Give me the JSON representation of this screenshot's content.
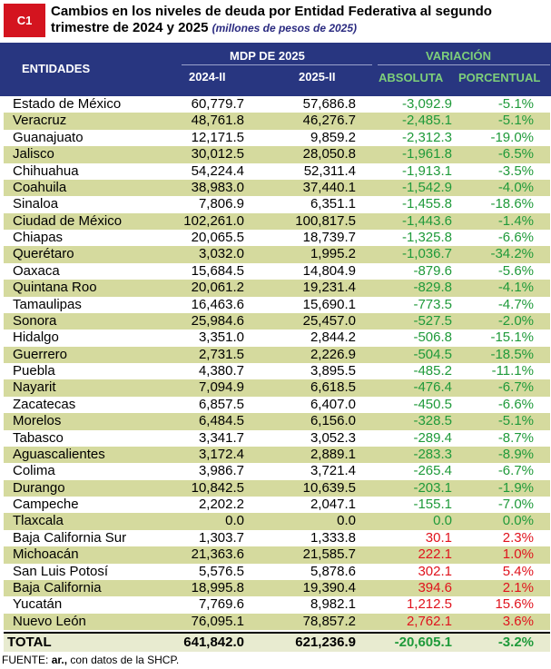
{
  "header": {
    "badge": "C1",
    "title": "Cambios en los niveles de deuda por Entidad Federativa al segundo trimestre de 2024 y 2025",
    "subtitle": "(millones de pesos de 2025)"
  },
  "columns": {
    "entidades": "ENTIDADES",
    "mdp_group": "MDP DE 2025",
    "y2024": "2024-II",
    "y2025": "2025-II",
    "variacion": "VARIACIÓN",
    "absoluta": "ABSOLUTA",
    "porcentual": "PORCENTUAL"
  },
  "rows": [
    {
      "entidad": "Estado de México",
      "v2024": "60,779.7",
      "v2025": "57,686.8",
      "abs": "-3,092.9",
      "pct": "-5.1%"
    },
    {
      "entidad": "Veracruz",
      "v2024": "48,761.8",
      "v2025": "46,276.7",
      "abs": "-2,485.1",
      "pct": "-5.1%"
    },
    {
      "entidad": "Guanajuato",
      "v2024": "12,171.5",
      "v2025": "9,859.2",
      "abs": "-2,312.3",
      "pct": "-19.0%"
    },
    {
      "entidad": "Jalisco",
      "v2024": "30,012.5",
      "v2025": "28,050.8",
      "abs": "-1,961.8",
      "pct": "-6.5%"
    },
    {
      "entidad": "Chihuahua",
      "v2024": "54,224.4",
      "v2025": "52,311.4",
      "abs": "-1,913.1",
      "pct": "-3.5%"
    },
    {
      "entidad": "Coahuila",
      "v2024": "38,983.0",
      "v2025": "37,440.1",
      "abs": "-1,542.9",
      "pct": "-4.0%"
    },
    {
      "entidad": "Sinaloa",
      "v2024": "7,806.9",
      "v2025": "6,351.1",
      "abs": "-1,455.8",
      "pct": "-18.6%"
    },
    {
      "entidad": "Ciudad de México",
      "v2024": "102,261.0",
      "v2025": "100,817.5",
      "abs": "-1,443.6",
      "pct": "-1.4%"
    },
    {
      "entidad": "Chiapas",
      "v2024": "20,065.5",
      "v2025": "18,739.7",
      "abs": "-1,325.8",
      "pct": "-6.6%"
    },
    {
      "entidad": "Querétaro",
      "v2024": "3,032.0",
      "v2025": "1,995.2",
      "abs": "-1,036.7",
      "pct": "-34.2%"
    },
    {
      "entidad": "Oaxaca",
      "v2024": "15,684.5",
      "v2025": "14,804.9",
      "abs": "-879.6",
      "pct": "-5.6%"
    },
    {
      "entidad": "Quintana Roo",
      "v2024": "20,061.2",
      "v2025": "19,231.4",
      "abs": "-829.8",
      "pct": "-4.1%"
    },
    {
      "entidad": "Tamaulipas",
      "v2024": "16,463.6",
      "v2025": "15,690.1",
      "abs": "-773.5",
      "pct": "-4.7%"
    },
    {
      "entidad": "Sonora",
      "v2024": "25,984.6",
      "v2025": "25,457.0",
      "abs": "-527.5",
      "pct": "-2.0%"
    },
    {
      "entidad": "Hidalgo",
      "v2024": "3,351.0",
      "v2025": "2,844.2",
      "abs": "-506.8",
      "pct": "-15.1%"
    },
    {
      "entidad": "Guerrero",
      "v2024": "2,731.5",
      "v2025": "2,226.9",
      "abs": "-504.5",
      "pct": "-18.5%"
    },
    {
      "entidad": "Puebla",
      "v2024": "4,380.7",
      "v2025": "3,895.5",
      "abs": "-485.2",
      "pct": "-11.1%"
    },
    {
      "entidad": "Nayarit",
      "v2024": "7,094.9",
      "v2025": "6,618.5",
      "abs": "-476.4",
      "pct": "-6.7%"
    },
    {
      "entidad": "Zacatecas",
      "v2024": "6,857.5",
      "v2025": "6,407.0",
      "abs": "-450.5",
      "pct": "-6.6%"
    },
    {
      "entidad": "Morelos",
      "v2024": "6,484.5",
      "v2025": "6,156.0",
      "abs": "-328.5",
      "pct": "-5.1%"
    },
    {
      "entidad": "Tabasco",
      "v2024": "3,341.7",
      "v2025": "3,052.3",
      "abs": "-289.4",
      "pct": "-8.7%"
    },
    {
      "entidad": "Aguascalientes",
      "v2024": "3,172.4",
      "v2025": "2,889.1",
      "abs": "-283.3",
      "pct": "-8.9%"
    },
    {
      "entidad": "Colima",
      "v2024": "3,986.7",
      "v2025": "3,721.4",
      "abs": "-265.4",
      "pct": "-6.7%"
    },
    {
      "entidad": "Durango",
      "v2024": "10,842.5",
      "v2025": "10,639.5",
      "abs": "-203.1",
      "pct": "-1.9%"
    },
    {
      "entidad": "Campeche",
      "v2024": "2,202.2",
      "v2025": "2,047.1",
      "abs": "-155.1",
      "pct": "-7.0%"
    },
    {
      "entidad": "Tlaxcala",
      "v2024": "0.0",
      "v2025": "0.0",
      "abs": "0.0",
      "pct": "0.0%"
    },
    {
      "entidad": "Baja California Sur",
      "v2024": "1,303.7",
      "v2025": "1,333.8",
      "abs": "30.1",
      "pct": "2.3%"
    },
    {
      "entidad": "Michoacán",
      "v2024": "21,363.6",
      "v2025": "21,585.7",
      "abs": "222.1",
      "pct": "1.0%"
    },
    {
      "entidad": "San Luis Potosí",
      "v2024": "5,576.5",
      "v2025": "5,878.6",
      "abs": "302.1",
      "pct": "5.4%"
    },
    {
      "entidad": "Baja California",
      "v2024": "18,995.8",
      "v2025": "19,390.4",
      "abs": "394.6",
      "pct": "2.1%"
    },
    {
      "entidad": "Yucatán",
      "v2024": "7,769.6",
      "v2025": "8,982.1",
      "abs": "1,212.5",
      "pct": "15.6%"
    },
    {
      "entidad": "Nuevo León",
      "v2024": "76,095.1",
      "v2025": "78,857.2",
      "abs": "2,762.1",
      "pct": "3.6%"
    }
  ],
  "total": {
    "label": "TOTAL",
    "v2024": "641,842.0",
    "v2025": "621,236.9",
    "abs": "-20,605.1",
    "pct": "-3.2%"
  },
  "source": {
    "prefix": "FUENTE:",
    "brand": "ar.,",
    "text": "con datos de la SHCP."
  },
  "colors": {
    "header_bg": "#283680",
    "badge_bg": "#d4141f",
    "alt_row": "#d5da9e",
    "negative": "#1f9a3a",
    "positive": "#e0131d"
  }
}
